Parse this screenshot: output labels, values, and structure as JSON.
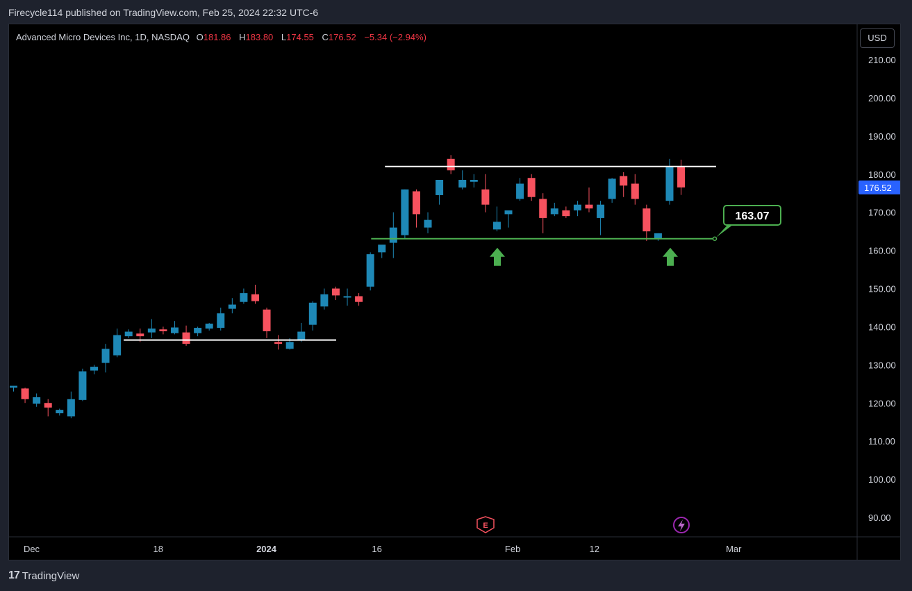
{
  "header": {
    "publisher_line": "Firecycle114 published on TradingView.com, Feb 25, 2024 22:32 UTC-6"
  },
  "legend": {
    "symbol": "Advanced Micro Devices Inc, 1D, NASDAQ",
    "o_label": "O",
    "o_value": "181.86",
    "h_label": "H",
    "h_value": "183.80",
    "l_label": "L",
    "l_value": "174.55",
    "c_label": "C",
    "c_value": "176.52",
    "change": "−5.34 (−2.94%)"
  },
  "currency_button": "USD",
  "footer": {
    "logo_mark": "17",
    "brand": "TradingView"
  },
  "colors": {
    "up": "#1e88b6",
    "down": "#f7525f",
    "support": "#4caf50",
    "resistance": "#ffffff",
    "price_tag": "#2962ff"
  },
  "chart_data": {
    "type": "candlestick",
    "ylim": [
      85,
      213
    ],
    "y_ticks": [
      "210.00",
      "200.00",
      "190.00",
      "180.00",
      "170.00",
      "160.00",
      "150.00",
      "140.00",
      "130.00",
      "120.00",
      "110.00",
      "100.00",
      "90.00"
    ],
    "x_labels": [
      "Dec",
      "18",
      "2024",
      "16",
      "Feb",
      "12",
      "Mar"
    ],
    "last_price": "176.52",
    "support_label": "163.07",
    "support_level": 163.07,
    "resistance_level": 182,
    "resistance_level_2": 136.5,
    "earnings_marker": "E",
    "candles": [
      [
        124,
        124.5,
        123,
        124.5
      ],
      [
        123.8,
        124,
        120,
        121
      ],
      [
        119.8,
        122.5,
        119,
        121.5
      ],
      [
        120,
        121,
        116.5,
        118.8
      ],
      [
        117.3,
        118.5,
        116.7,
        118.2
      ],
      [
        116.5,
        123,
        116,
        121
      ],
      [
        120.8,
        129,
        120.5,
        128.3
      ],
      [
        128.5,
        130,
        127.5,
        129.5
      ],
      [
        130.5,
        135.5,
        128,
        134.2
      ],
      [
        132.5,
        139.5,
        132,
        137.8
      ],
      [
        137.5,
        139.3,
        137,
        138.7
      ],
      [
        138.2,
        139.5,
        136,
        137.5
      ],
      [
        138.5,
        142,
        137,
        139.5
      ],
      [
        139.3,
        140,
        138,
        138.8
      ],
      [
        138.3,
        141.5,
        138,
        139.8
      ],
      [
        138.5,
        140.3,
        135,
        135.5
      ],
      [
        138.3,
        140,
        137.5,
        139.7
      ],
      [
        139.5,
        141,
        139,
        140.8
      ],
      [
        139.7,
        145,
        139,
        143.5
      ],
      [
        144.7,
        147.5,
        143.5,
        145.8
      ],
      [
        146.5,
        150,
        146,
        148.8
      ],
      [
        148.5,
        151,
        146,
        146.7
      ],
      [
        144.5,
        145,
        137,
        138.8
      ],
      [
        136,
        137.8,
        134,
        135.5
      ],
      [
        134.2,
        137,
        134,
        136
      ],
      [
        136.5,
        141,
        136,
        138.7
      ],
      [
        140.5,
        146.7,
        139,
        146.3
      ],
      [
        145.3,
        150,
        144.5,
        148.5
      ],
      [
        150,
        150.5,
        147,
        148.2
      ],
      [
        148,
        150,
        145.5,
        148
      ],
      [
        148,
        148.8,
        145.5,
        146.5
      ],
      [
        150.5,
        159.5,
        149.5,
        159
      ],
      [
        159.5,
        161,
        158,
        161.5
      ],
      [
        162,
        170,
        158,
        166
      ],
      [
        164,
        176,
        163,
        176
      ],
      [
        175.5,
        176,
        166,
        169.5
      ],
      [
        166,
        170,
        164.5,
        168
      ],
      [
        174.5,
        178.5,
        172,
        178.5
      ],
      [
        184,
        185,
        180,
        181
      ],
      [
        176.5,
        181,
        176,
        178.5
      ],
      [
        178,
        180,
        176.5,
        178.5
      ],
      [
        176,
        180,
        170,
        172
      ],
      [
        165.5,
        171.5,
        165,
        167.5
      ],
      [
        169.5,
        170,
        166,
        170.5
      ],
      [
        173.5,
        179,
        173,
        177.5
      ],
      [
        179,
        180,
        173,
        174
      ],
      [
        173.5,
        175,
        164.5,
        168.5
      ],
      [
        169.5,
        172.5,
        169,
        171
      ],
      [
        170.5,
        171.5,
        168.5,
        169
      ],
      [
        170.5,
        173,
        169,
        172
      ],
      [
        172,
        176.5,
        170,
        171
      ],
      [
        168.5,
        173,
        164,
        172
      ],
      [
        173.5,
        179,
        172.5,
        178.8
      ],
      [
        179.5,
        180.5,
        174,
        177
      ],
      [
        177.5,
        180,
        172,
        173.5
      ],
      [
        171,
        172,
        162.5,
        165
      ],
      [
        163,
        164.5,
        162.5,
        164.5
      ],
      [
        173,
        184,
        172,
        182
      ],
      [
        181.86,
        183.8,
        174.55,
        176.52
      ]
    ]
  }
}
